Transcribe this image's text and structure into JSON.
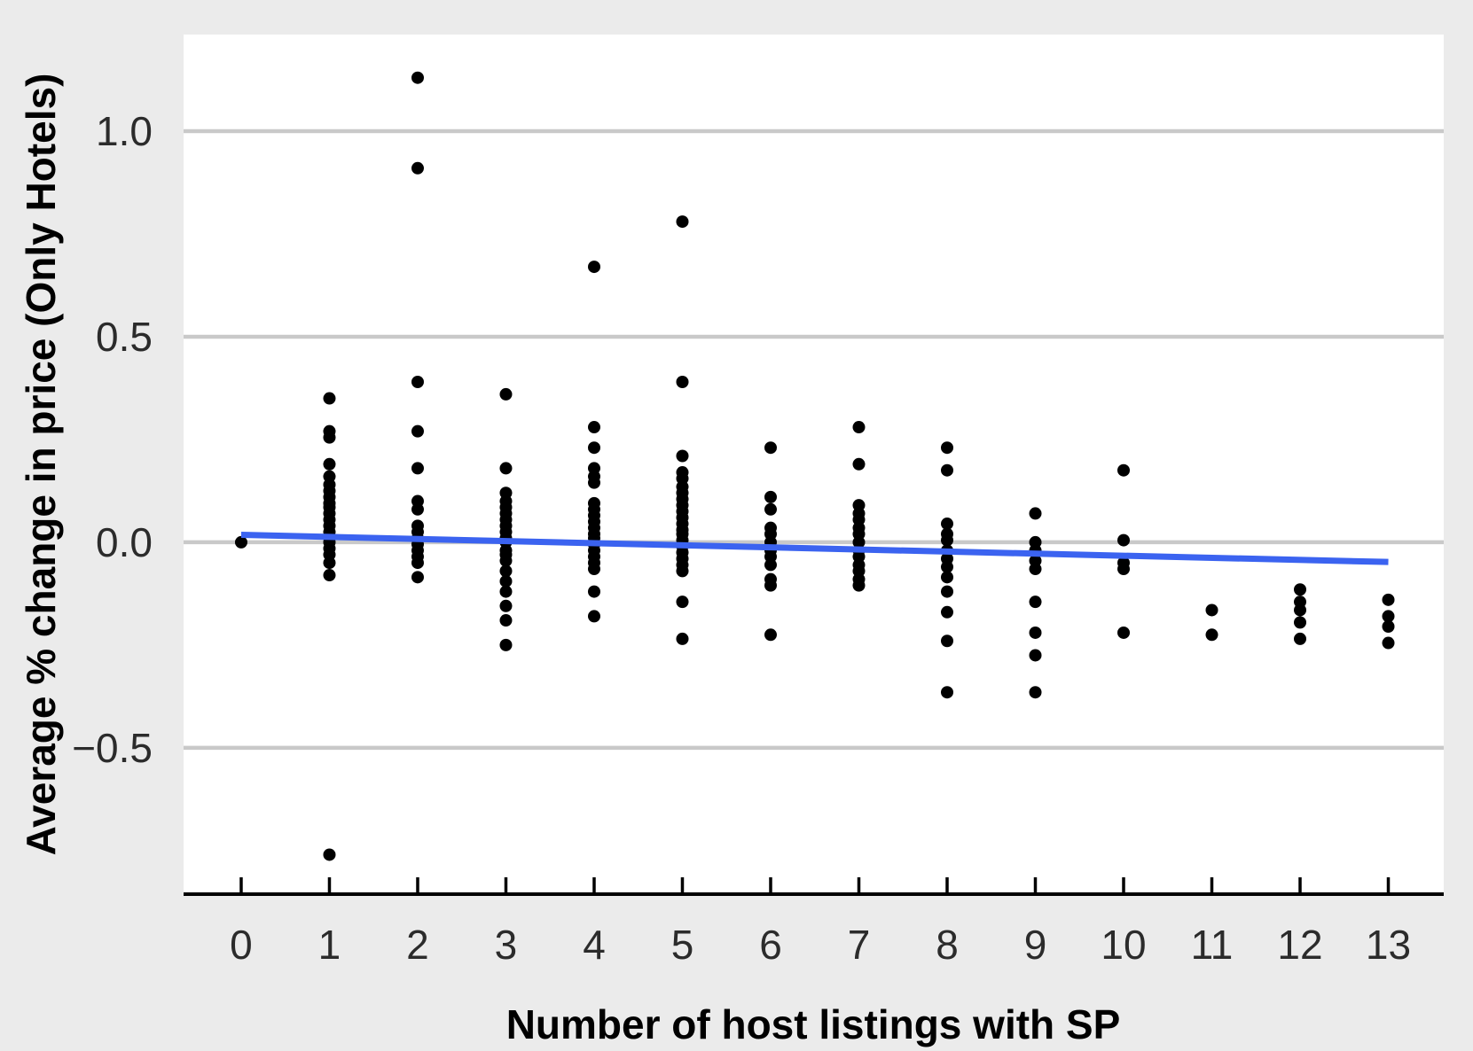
{
  "chart_data": {
    "type": "scatter",
    "title": "",
    "xlabel": "Number of host listings with SP",
    "ylabel": "Average % change in price (Only Hotels)",
    "xticks": {
      "values": [
        0,
        1,
        2,
        3,
        4,
        5,
        6,
        7,
        8,
        9,
        10,
        11,
        12,
        13
      ],
      "labels": [
        "0",
        "1",
        "2",
        "3",
        "4",
        "5",
        "6",
        "7",
        "8",
        "9",
        "10",
        "11",
        "12",
        "13"
      ]
    },
    "yticks": {
      "values": [
        1.0,
        0.5,
        0.0,
        -0.5
      ],
      "labels": [
        "1.0",
        "0.5",
        "0.0",
        "−0.5"
      ]
    },
    "xlim": [
      -0.653,
      13.628
    ],
    "ylim": [
      -0.856,
      1.235
    ],
    "grid": "major-y-only",
    "legend": "none",
    "colors": {
      "point": "#000000",
      "trend": "#3B63F0",
      "background": "#EBEBEB",
      "panel": "#FFFFFF",
      "gridline": "#C9C9C9",
      "axis": "#000000"
    },
    "series": [
      {
        "x": 0,
        "ys": [
          0.0
        ]
      },
      {
        "x": 1,
        "ys": [
          0.35,
          0.27,
          0.255,
          0.19,
          0.16,
          0.14,
          0.125,
          0.11,
          0.095,
          0.085,
          0.07,
          0.055,
          0.04,
          0.025,
          0.01,
          0.0,
          -0.015,
          -0.03,
          -0.05,
          -0.08,
          -0.76
        ]
      },
      {
        "x": 2,
        "ys": [
          1.13,
          0.91,
          0.39,
          0.27,
          0.18,
          0.1,
          0.08,
          0.04,
          0.025,
          0.01,
          -0.005,
          -0.02,
          -0.035,
          -0.05,
          -0.085
        ]
      },
      {
        "x": 3,
        "ys": [
          0.36,
          0.18,
          0.12,
          0.1,
          0.085,
          0.07,
          0.055,
          0.04,
          0.025,
          0.01,
          0.0,
          -0.02,
          -0.03,
          -0.045,
          -0.07,
          -0.095,
          -0.12,
          -0.155,
          -0.19,
          -0.25
        ]
      },
      {
        "x": 4,
        "ys": [
          0.67,
          0.28,
          0.23,
          0.18,
          0.16,
          0.145,
          0.095,
          0.08,
          0.065,
          0.05,
          0.035,
          0.02,
          0.01,
          -0.005,
          -0.02,
          -0.035,
          -0.05,
          -0.065,
          -0.12,
          -0.18
        ]
      },
      {
        "x": 5,
        "ys": [
          0.78,
          0.39,
          0.21,
          0.17,
          0.155,
          0.135,
          0.12,
          0.105,
          0.09,
          0.075,
          0.06,
          0.045,
          0.03,
          0.02,
          0.005,
          -0.01,
          -0.025,
          -0.04,
          -0.055,
          -0.07,
          -0.145,
          -0.235
        ]
      },
      {
        "x": 6,
        "ys": [
          0.23,
          0.11,
          0.08,
          0.035,
          0.02,
          0.0,
          -0.02,
          -0.035,
          -0.055,
          -0.09,
          -0.105,
          -0.225
        ]
      },
      {
        "x": 7,
        "ys": [
          0.28,
          0.19,
          0.09,
          0.07,
          0.055,
          0.035,
          0.02,
          0.0,
          -0.02,
          -0.035,
          -0.055,
          -0.07,
          -0.09,
          -0.105
        ]
      },
      {
        "x": 8,
        "ys": [
          0.23,
          0.175,
          0.045,
          0.02,
          0.005,
          -0.02,
          -0.04,
          -0.06,
          -0.085,
          -0.12,
          -0.17,
          -0.24,
          -0.365
        ]
      },
      {
        "x": 9,
        "ys": [
          0.07,
          0.0,
          -0.02,
          -0.045,
          -0.065,
          -0.145,
          -0.22,
          -0.275,
          -0.365
        ]
      },
      {
        "x": 10,
        "ys": [
          0.175,
          0.005,
          -0.05,
          -0.065,
          -0.22
        ]
      },
      {
        "x": 11,
        "ys": [
          -0.165,
          -0.225
        ]
      },
      {
        "x": 12,
        "ys": [
          -0.115,
          -0.145,
          -0.165,
          -0.195,
          -0.235
        ]
      },
      {
        "x": 13,
        "ys": [
          -0.14,
          -0.18,
          -0.205,
          -0.245
        ]
      }
    ],
    "trendline": {
      "x0": 0,
      "y0": 0.018,
      "x1": 13,
      "y1": -0.048
    }
  }
}
